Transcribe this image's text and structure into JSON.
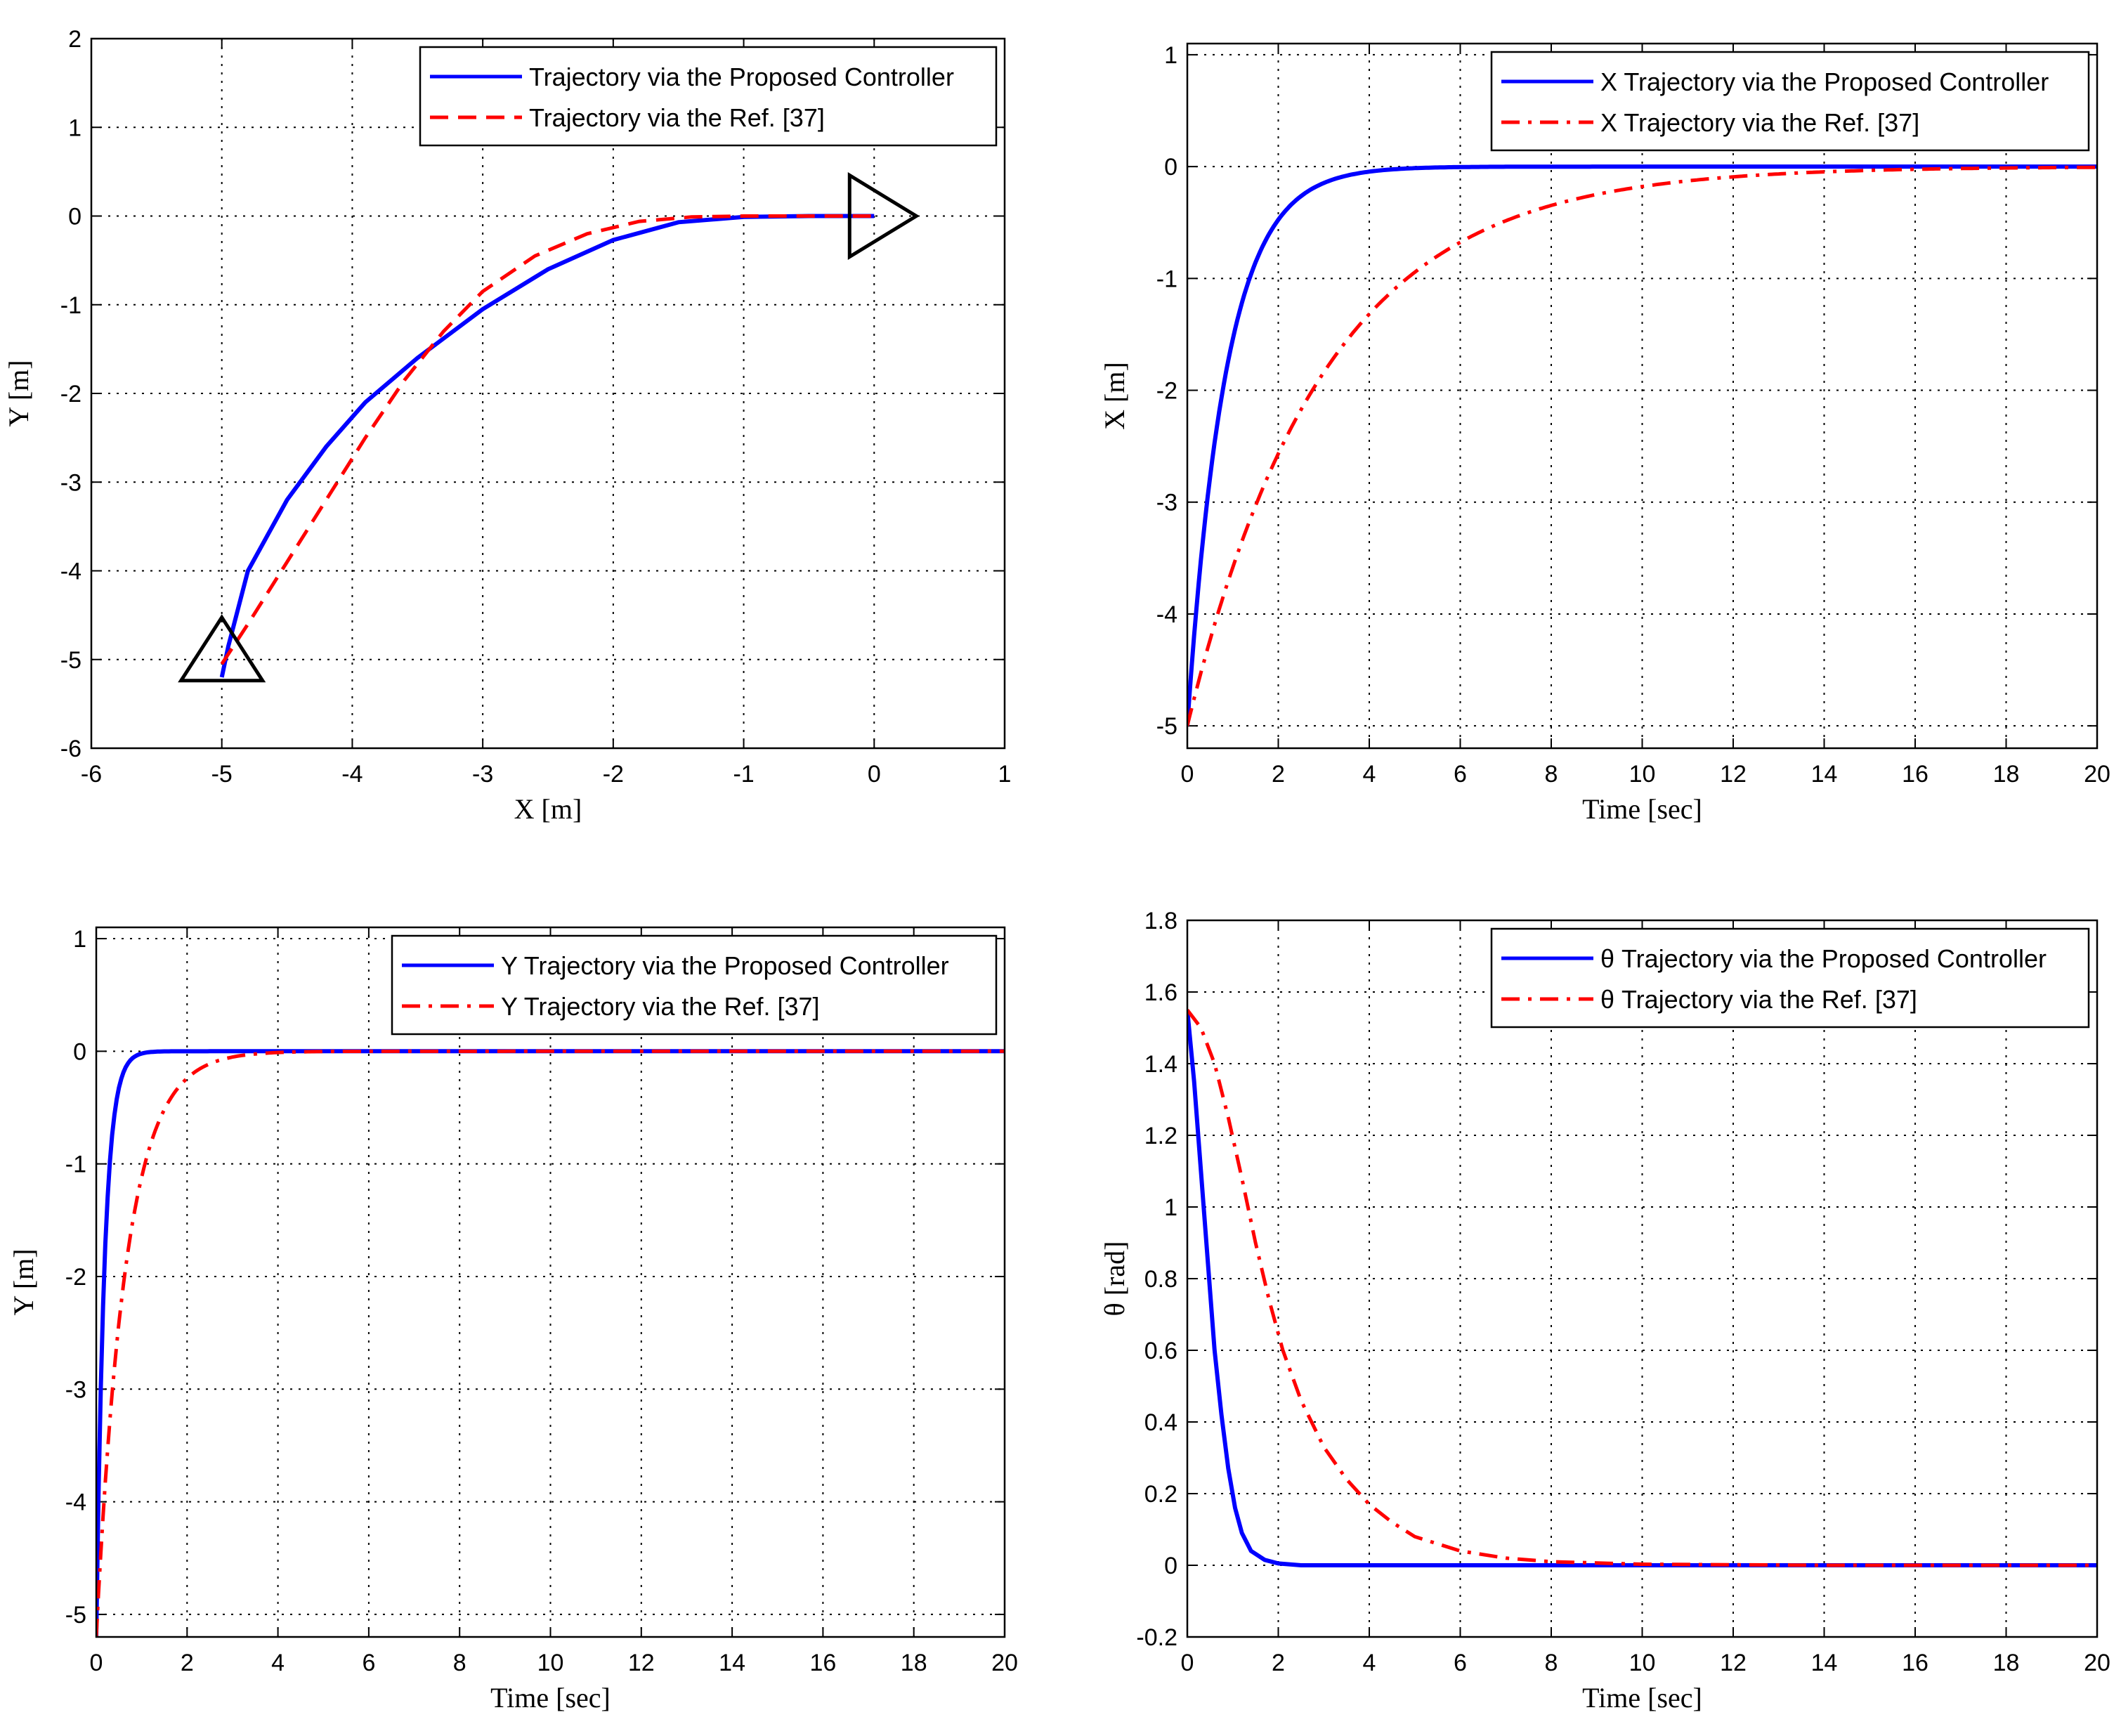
{
  "chart_data": [
    {
      "type": "line",
      "xlabel": "X [m]",
      "ylabel": "Y [m]",
      "xlim": [
        -6,
        1
      ],
      "ylim": [
        -6,
        2
      ],
      "xticks": [
        "-6",
        "-5",
        "-4",
        "-3",
        "-2",
        "-1",
        "0",
        "1"
      ],
      "yticks": [
        "2",
        "1",
        "0",
        "-1",
        "-2",
        "-3",
        "-4",
        "-5",
        "-6"
      ],
      "grid": true,
      "legend_position": "top-right",
      "series": [
        {
          "name": "Trajectory via the Proposed Controller",
          "color": "#0000ff",
          "style": "solid",
          "x": [
            -5.0,
            -4.95,
            -4.8,
            -4.5,
            -4.2,
            -3.9,
            -3.5,
            -3.0,
            -2.5,
            -2.0,
            -1.5,
            -1.0,
            -0.5,
            0.0
          ],
          "y": [
            -5.2,
            -4.85,
            -4.0,
            -3.2,
            -2.6,
            -2.1,
            -1.6,
            -1.05,
            -0.6,
            -0.27,
            -0.07,
            -0.01,
            0.0,
            0.0
          ]
        },
        {
          "name": "Trajectory via the Ref. [37]",
          "color": "#ff0000",
          "style": "dashed",
          "x": [
            -5.0,
            -4.8,
            -4.5,
            -4.2,
            -3.9,
            -3.6,
            -3.3,
            -3.0,
            -2.6,
            -2.2,
            -1.8,
            -1.4,
            -1.0,
            -0.5,
            0.0
          ],
          "y": [
            -5.05,
            -4.6,
            -3.9,
            -3.2,
            -2.5,
            -1.85,
            -1.3,
            -0.85,
            -0.45,
            -0.2,
            -0.06,
            -0.01,
            0.0,
            0.0,
            0.0
          ]
        }
      ],
      "markers": [
        {
          "name": "start-triangle",
          "x": -5.0,
          "y": -5.0,
          "direction": "up"
        },
        {
          "name": "end-triangle",
          "x": 0.0,
          "y": 0.0,
          "direction": "right"
        }
      ]
    },
    {
      "type": "line",
      "xlabel": "Time [sec]",
      "ylabel": "X [m]",
      "xlim": [
        0,
        20
      ],
      "ylim": [
        -5.2,
        1.1
      ],
      "xticks": [
        "0",
        "2",
        "4",
        "6",
        "8",
        "10",
        "12",
        "14",
        "16",
        "18",
        "20"
      ],
      "yticks": [
        "1",
        "0",
        "-1",
        "-2",
        "-3",
        "-4",
        "-5"
      ],
      "ytick_values": [
        1,
        0,
        -1,
        -2,
        -3,
        -4,
        -5
      ],
      "grid": true,
      "legend_position": "top-right",
      "series": [
        {
          "name": "X Trajectory via the Proposed Controller",
          "color": "#0000ff",
          "style": "solid",
          "decay": {
            "start": -5.0,
            "tau": 0.85,
            "delay": 0.0
          }
        },
        {
          "name": "X Trajectory via the Ref. [37]",
          "color": "#ff0000",
          "style": "dashdot",
          "decay": {
            "start": -5.0,
            "tau": 3.0,
            "delay": 0.0
          }
        }
      ]
    },
    {
      "type": "line",
      "xlabel": "Time [sec]",
      "ylabel": "Y [m]",
      "xlim": [
        0,
        20
      ],
      "ylim": [
        -5.2,
        1.1
      ],
      "xticks": [
        "0",
        "2",
        "4",
        "6",
        "8",
        "10",
        "12",
        "14",
        "16",
        "18",
        "20"
      ],
      "yticks": [
        "1",
        "0",
        "-1",
        "-2",
        "-3",
        "-4",
        "-5"
      ],
      "ytick_values": [
        1,
        0,
        -1,
        -2,
        -3,
        -4,
        -5
      ],
      "grid": true,
      "legend_position": "top-right",
      "series": [
        {
          "name": "Y Trajectory via the Proposed Controller",
          "color": "#0000ff",
          "style": "solid",
          "decay": {
            "start": -5.2,
            "tau": 0.18,
            "delay": 0.0
          }
        },
        {
          "name": "Y Trajectory via the Ref. [37]",
          "color": "#ff0000",
          "style": "dashdot",
          "decay": {
            "start": -5.2,
            "tau": 0.65,
            "delay": 0.0
          }
        }
      ]
    },
    {
      "type": "line",
      "xlabel": "Time [sec]",
      "ylabel": "θ [rad]",
      "xlim": [
        0,
        20
      ],
      "ylim": [
        -0.2,
        1.8
      ],
      "xticks": [
        "0",
        "2",
        "4",
        "6",
        "8",
        "10",
        "12",
        "14",
        "16",
        "18",
        "20"
      ],
      "yticks": [
        "1.8",
        "1.6",
        "1.4",
        "1.2",
        "1",
        "0.8",
        "0.6",
        "0.4",
        "0.2",
        "0",
        "-0.2"
      ],
      "ytick_values": [
        1.8,
        1.6,
        1.4,
        1.2,
        1,
        0.8,
        0.6,
        0.4,
        0.2,
        0,
        -0.2
      ],
      "grid": true,
      "legend_position": "top-right",
      "series": [
        {
          "name": "θ Trajectory via the Proposed Controller",
          "color": "#0000ff",
          "style": "solid",
          "t": [
            0,
            0.15,
            0.3,
            0.45,
            0.6,
            0.75,
            0.9,
            1.05,
            1.2,
            1.4,
            1.7,
            2.0,
            2.5,
            3.0,
            20
          ],
          "v": [
            1.55,
            1.35,
            1.1,
            0.85,
            0.6,
            0.42,
            0.27,
            0.16,
            0.09,
            0.04,
            0.015,
            0.005,
            0.0,
            0.0,
            0.0
          ]
        },
        {
          "name": "θ Trajectory via the Ref. [37]",
          "color": "#ff0000",
          "style": "dashdot",
          "t": [
            0,
            0.3,
            0.6,
            0.9,
            1.2,
            1.5,
            1.8,
            2.1,
            2.5,
            3.0,
            3.5,
            4.0,
            4.5,
            5.0,
            6.0,
            7.0,
            8.0,
            10,
            14,
            20
          ],
          "v": [
            1.55,
            1.5,
            1.4,
            1.25,
            1.08,
            0.9,
            0.74,
            0.6,
            0.46,
            0.33,
            0.24,
            0.17,
            0.12,
            0.08,
            0.04,
            0.02,
            0.01,
            0.003,
            0.0,
            0.0
          ]
        }
      ]
    }
  ]
}
